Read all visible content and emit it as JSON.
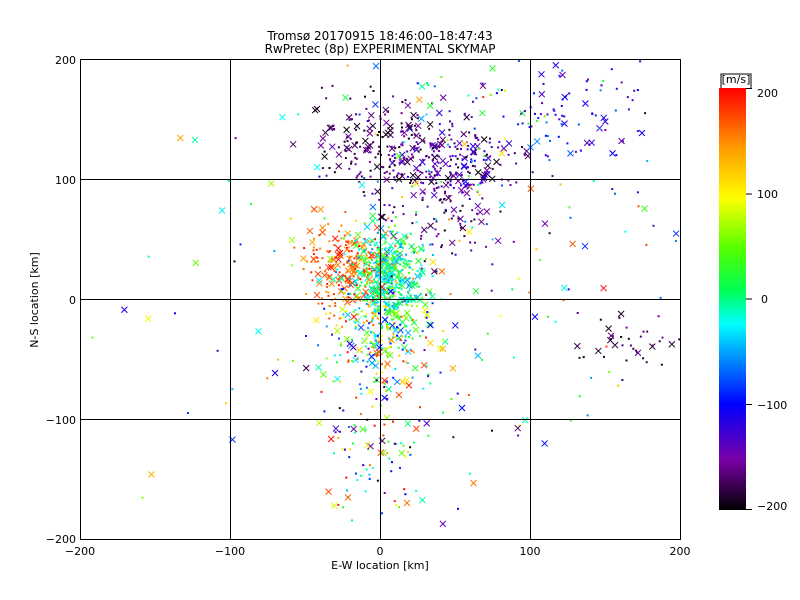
{
  "chart_data": {
    "type": "scatter",
    "title": "Tromsø 20170915 18:46:00–18:47:43",
    "subtitle": "RwPretec (8p) EXPERIMENTAL SKYMAP",
    "xlabel": "E-W location [km]",
    "ylabel": "N-S location [km]",
    "xlim": [
      -200,
      200
    ],
    "ylim": [
      -200,
      200
    ],
    "x_ticks": [
      "−200",
      "−100",
      "0",
      "100",
      "200"
    ],
    "y_ticks": [
      "−200",
      "−100",
      "0",
      "100",
      "200"
    ],
    "grid_lines_km": [
      -100,
      0,
      100
    ],
    "grid": true,
    "colorbar": {
      "unit": "[m/s]",
      "range": [
        -200,
        200
      ],
      "ticks": [
        "200",
        "100",
        "0",
        "−100",
        "−200"
      ],
      "colormap": "rainbow (black→purple→blue→cyan→green→yellow→orange→red)"
    },
    "marker_types": [
      "dot",
      "x"
    ],
    "clusters": [
      {
        "cx": 45,
        "cy": 115,
        "sx": 25,
        "sy": 15,
        "n": 220,
        "vmin": -200,
        "vmax": -120
      },
      {
        "cx": -5,
        "cy": 135,
        "sx": 25,
        "sy": 20,
        "n": 140,
        "vmin": -200,
        "vmax": -170
      },
      {
        "cx": 50,
        "cy": 150,
        "sx": 45,
        "sy": 35,
        "n": 80,
        "vmin": -200,
        "vmax": 140
      },
      {
        "cx": 125,
        "cy": 150,
        "sx": 25,
        "sy": 25,
        "n": 80,
        "vmin": -170,
        "vmax": -60
      },
      {
        "cx": 40,
        "cy": 70,
        "sx": 18,
        "sy": 22,
        "n": 90,
        "vmin": -200,
        "vmax": -150
      },
      {
        "cx": -20,
        "cy": 30,
        "sx": 16,
        "sy": 18,
        "n": 220,
        "vmin": 140,
        "vmax": 200
      },
      {
        "cx": 5,
        "cy": 15,
        "sx": 12,
        "sy": 22,
        "n": 450,
        "vmin": -60,
        "vmax": 60
      },
      {
        "cx": 0,
        "cy": -25,
        "sx": 18,
        "sy": 28,
        "n": 220,
        "vmin": -100,
        "vmax": 200
      },
      {
        "cx": 0,
        "cy": -120,
        "sx": 18,
        "sy": 40,
        "n": 110,
        "vmin": -200,
        "vmax": 200
      },
      {
        "cx": 165,
        "cy": -35,
        "sx": 18,
        "sy": 18,
        "n": 40,
        "vmin": -200,
        "vmax": -170
      },
      {
        "cx": 40,
        "cy": 0,
        "sx": 90,
        "sy": 90,
        "n": 180,
        "vmin": -200,
        "vmax": 200
      }
    ]
  }
}
